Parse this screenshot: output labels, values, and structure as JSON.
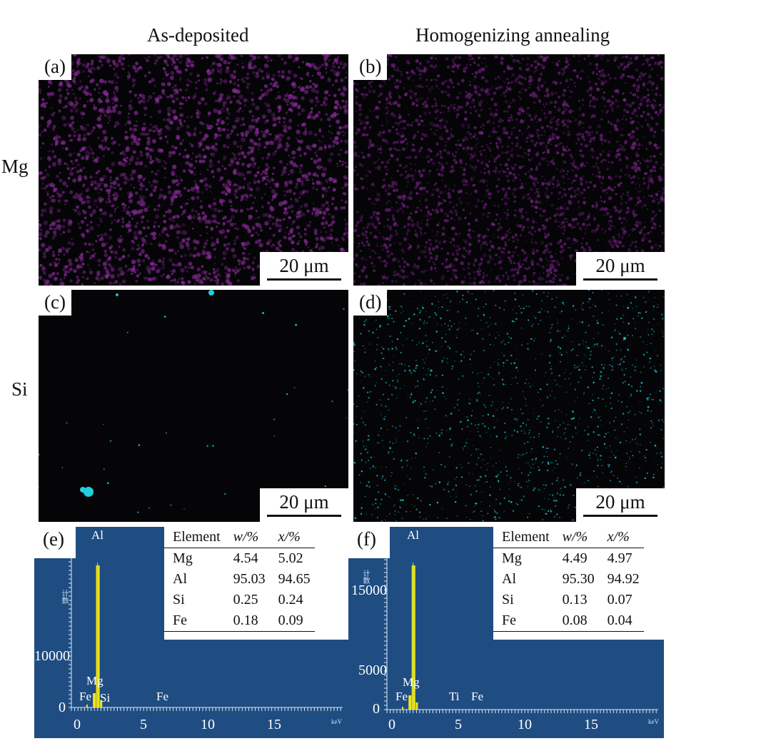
{
  "columns": {
    "left": "As-deposited",
    "right": "Homogenizing annealing"
  },
  "rows": {
    "top": "Mg",
    "middle": "Si"
  },
  "maps": {
    "a": {
      "label": "(a)",
      "scale": "20 μm",
      "color": "#8a2a99"
    },
    "b": {
      "label": "(b)",
      "scale": "20 μm",
      "color": "#7a2288"
    },
    "c": {
      "label": "(c)",
      "scale": "20 μm",
      "color": "#1fd0dc"
    },
    "d": {
      "label": "(d)",
      "scale": "20 μm",
      "color": "#1fd0dc"
    }
  },
  "spectra": {
    "e": {
      "label": "(e)",
      "table_headers": [
        "Element",
        "w/%",
        "x/%"
      ],
      "table_rows": [
        [
          "Mg",
          "4.54",
          "5.02"
        ],
        [
          "Al",
          "95.03",
          "94.65"
        ],
        [
          "Si",
          "0.25",
          "0.24"
        ],
        [
          "Fe",
          "0.18",
          "0.09"
        ]
      ],
      "y_ticks": [
        "10000",
        "0"
      ],
      "x_ticks": [
        "0",
        "5",
        "10",
        "15"
      ],
      "peaks": [
        "Al",
        "Mg",
        "Fe",
        "Si",
        "Fe"
      ],
      "y_axis_label": "计数",
      "x_unit": "keV"
    },
    "f": {
      "label": "(f)",
      "table_headers": [
        "Element",
        "w/%",
        "x/%"
      ],
      "table_rows": [
        [
          "Mg",
          "4.49",
          "4.97"
        ],
        [
          "Al",
          "95.30",
          "94.92"
        ],
        [
          "Si",
          "0.13",
          "0.07"
        ],
        [
          "Fe",
          "0.08",
          "0.04"
        ]
      ],
      "y_ticks": [
        "15000",
        "5000",
        "0"
      ],
      "x_ticks": [
        "0",
        "5",
        "10",
        "15"
      ],
      "peaks": [
        "Al",
        "Mg",
        "Fe",
        "Ti",
        "Fe"
      ],
      "y_axis_label": "计数",
      "x_unit": "keV"
    }
  },
  "chart_data": [
    {
      "type": "line",
      "title": "(e)",
      "xlabel": "keV",
      "ylabel": "计数",
      "xlim": [
        -0.5,
        20
      ],
      "x_ticks": [
        0,
        5,
        10,
        15
      ],
      "y_ticks": [
        0,
        10000
      ],
      "peaks": [
        {
          "element": "Al",
          "x": 1.49
        },
        {
          "element": "Mg",
          "x": 1.25
        },
        {
          "element": "Fe",
          "x": 0.7
        },
        {
          "element": "Si",
          "x": 1.74
        },
        {
          "element": "Fe",
          "x": 6.4
        }
      ]
    },
    {
      "type": "line",
      "title": "(f)",
      "xlabel": "keV",
      "ylabel": "计数",
      "xlim": [
        -0.5,
        20
      ],
      "x_ticks": [
        0,
        5,
        10,
        15
      ],
      "y_ticks": [
        0,
        5000,
        15000
      ],
      "peaks": [
        {
          "element": "Al",
          "x": 1.49
        },
        {
          "element": "Mg",
          "x": 1.25
        },
        {
          "element": "Fe",
          "x": 0.7
        },
        {
          "element": "Ti",
          "x": 4.51
        },
        {
          "element": "Fe",
          "x": 6.4
        }
      ]
    }
  ]
}
